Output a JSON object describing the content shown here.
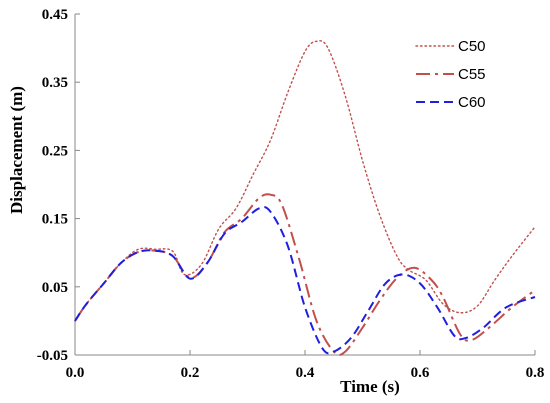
{
  "chart_data": {
    "type": "line",
    "title": "",
    "xlabel": "Time (s)",
    "ylabel": "Displacement (m)",
    "xlim": [
      0.0,
      0.8
    ],
    "ylim": [
      -0.05,
      0.45
    ],
    "xticks": [
      0.0,
      0.2,
      0.4,
      0.6,
      0.8
    ],
    "xtick_labels": [
      "0.0",
      "0.2",
      "0.4",
      "0.6",
      "0.8"
    ],
    "yticks": [
      -0.05,
      0.05,
      0.15,
      0.25,
      0.35,
      0.45
    ],
    "ytick_labels": [
      "-0.05",
      "0.05",
      "0.15",
      "0.25",
      "0.35",
      "0.45"
    ],
    "grid": false,
    "legend_position": "top-right",
    "series": [
      {
        "name": "C50",
        "color": "#c0504d",
        "dash": "dotted",
        "points": [
          [
            0.0,
            0.0
          ],
          [
            0.02,
            0.025
          ],
          [
            0.05,
            0.055
          ],
          [
            0.08,
            0.085
          ],
          [
            0.11,
            0.105
          ],
          [
            0.14,
            0.105
          ],
          [
            0.17,
            0.102
          ],
          [
            0.19,
            0.068
          ],
          [
            0.22,
            0.083
          ],
          [
            0.25,
            0.135
          ],
          [
            0.28,
            0.165
          ],
          [
            0.31,
            0.215
          ],
          [
            0.34,
            0.265
          ],
          [
            0.37,
            0.335
          ],
          [
            0.4,
            0.395
          ],
          [
            0.42,
            0.41
          ],
          [
            0.44,
            0.4
          ],
          [
            0.47,
            0.33
          ],
          [
            0.5,
            0.235
          ],
          [
            0.53,
            0.155
          ],
          [
            0.56,
            0.095
          ],
          [
            0.58,
            0.075
          ],
          [
            0.61,
            0.06
          ],
          [
            0.64,
            0.025
          ],
          [
            0.67,
            0.012
          ],
          [
            0.7,
            0.022
          ],
          [
            0.73,
            0.06
          ],
          [
            0.76,
            0.095
          ],
          [
            0.8,
            0.138
          ]
        ]
      },
      {
        "name": "C55",
        "color": "#c0504d",
        "dash": "dashdot",
        "points": [
          [
            0.0,
            0.0
          ],
          [
            0.02,
            0.025
          ],
          [
            0.05,
            0.055
          ],
          [
            0.08,
            0.085
          ],
          [
            0.11,
            0.101
          ],
          [
            0.14,
            0.103
          ],
          [
            0.17,
            0.095
          ],
          [
            0.2,
            0.063
          ],
          [
            0.23,
            0.085
          ],
          [
            0.26,
            0.13
          ],
          [
            0.29,
            0.15
          ],
          [
            0.32,
            0.18
          ],
          [
            0.34,
            0.185
          ],
          [
            0.36,
            0.17
          ],
          [
            0.39,
            0.09
          ],
          [
            0.42,
            0.0
          ],
          [
            0.45,
            -0.045
          ],
          [
            0.47,
            -0.045
          ],
          [
            0.5,
            -0.01
          ],
          [
            0.53,
            0.03
          ],
          [
            0.56,
            0.063
          ],
          [
            0.59,
            0.078
          ],
          [
            0.62,
            0.06
          ],
          [
            0.64,
            0.035
          ],
          [
            0.67,
            -0.02
          ],
          [
            0.69,
            -0.028
          ],
          [
            0.72,
            -0.01
          ],
          [
            0.76,
            0.02
          ],
          [
            0.8,
            0.045
          ]
        ]
      },
      {
        "name": "C60",
        "color": "#1f1fdd",
        "dash": "dashed",
        "points": [
          [
            0.0,
            0.0
          ],
          [
            0.02,
            0.025
          ],
          [
            0.05,
            0.055
          ],
          [
            0.08,
            0.085
          ],
          [
            0.11,
            0.101
          ],
          [
            0.14,
            0.103
          ],
          [
            0.17,
            0.095
          ],
          [
            0.2,
            0.062
          ],
          [
            0.23,
            0.085
          ],
          [
            0.26,
            0.128
          ],
          [
            0.29,
            0.145
          ],
          [
            0.32,
            0.165
          ],
          [
            0.34,
            0.16
          ],
          [
            0.37,
            0.11
          ],
          [
            0.4,
            0.02
          ],
          [
            0.43,
            -0.04
          ],
          [
            0.45,
            -0.045
          ],
          [
            0.48,
            -0.025
          ],
          [
            0.51,
            0.015
          ],
          [
            0.54,
            0.055
          ],
          [
            0.57,
            0.068
          ],
          [
            0.6,
            0.055
          ],
          [
            0.63,
            0.02
          ],
          [
            0.66,
            -0.022
          ],
          [
            0.68,
            -0.025
          ],
          [
            0.71,
            -0.01
          ],
          [
            0.75,
            0.02
          ],
          [
            0.8,
            0.035
          ]
        ]
      }
    ]
  }
}
